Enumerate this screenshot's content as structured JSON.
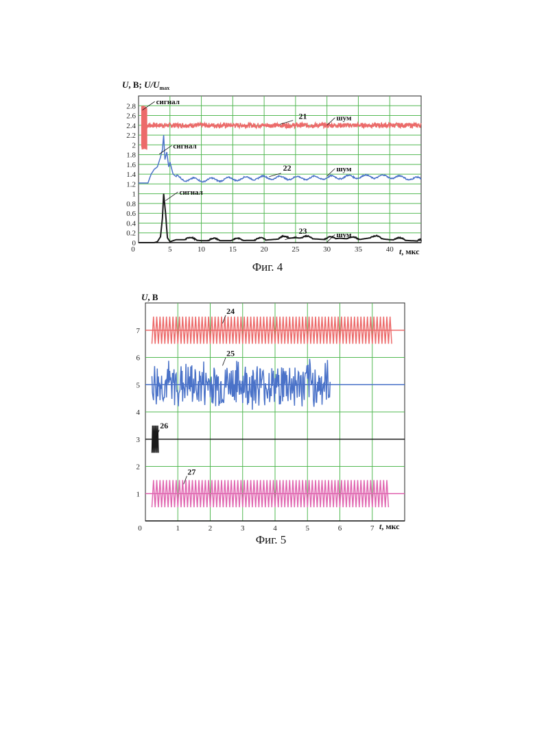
{
  "chart_data": [
    {
      "type": "line",
      "title": "",
      "ylabel_parts": {
        "u": "U",
        "sep": ", В; ",
        "u2": "U/U",
        "sub": "max"
      },
      "xlabel_parts": {
        "t": "t",
        "rest": ", мкс"
      },
      "xlim": [
        0,
        45
      ],
      "ylim": [
        0,
        3.0
      ],
      "grid": true,
      "x_ticks": [
        "0",
        "5",
        "10",
        "15",
        "20",
        "25",
        "30",
        "35",
        "40"
      ],
      "x_tick_values": [
        0,
        5,
        10,
        15,
        20,
        25,
        30,
        35,
        40
      ],
      "y_ticks": [
        "0",
        "0.2",
        "0.4",
        "0.6",
        "0.8",
        "1",
        "1.2",
        "1.4",
        "1.6",
        "1.8",
        "2",
        "2.2",
        "2.4",
        "2.6",
        "2.8"
      ],
      "y_tick_values": [
        0,
        0.2,
        0.4,
        0.6,
        0.8,
        1.0,
        1.2,
        1.4,
        1.6,
        1.8,
        2.0,
        2.2,
        2.4,
        2.6,
        2.8
      ],
      "series": [
        {
          "label": "21",
          "color": "#ec6a6a",
          "baseline": 2.4,
          "noise_amplitude": 0.05,
          "signal": {
            "x_range": [
              0.5,
              1.3
            ],
            "y_range": [
              1.9,
              2.8
            ]
          },
          "x": [
            0.5,
            1.3,
            2,
            5,
            10,
            15,
            20,
            25,
            30,
            35,
            40,
            45
          ],
          "y": [
            2.4,
            2.4,
            2.4,
            2.4,
            2.4,
            2.4,
            2.4,
            2.4,
            2.4,
            2.4,
            2.4,
            2.4
          ]
        },
        {
          "label": "22",
          "color": "#4a72c8",
          "x": [
            0,
            1.5,
            2.0,
            2.5,
            3.0,
            3.5,
            3.8,
            4.0,
            4.2,
            4.5,
            4.8,
            5.0,
            5.5,
            6.0,
            7,
            10,
            15,
            20,
            25,
            30,
            35,
            40,
            45
          ],
          "y": [
            1.22,
            1.22,
            1.4,
            1.5,
            1.55,
            1.75,
            1.9,
            2.2,
            1.7,
            1.85,
            1.55,
            1.65,
            1.4,
            1.35,
            1.3,
            1.28,
            1.3,
            1.33,
            1.32,
            1.33,
            1.35,
            1.35,
            1.3
          ]
        },
        {
          "label": "23",
          "color": "#1a1a1a",
          "x": [
            0,
            2.5,
            3.0,
            3.5,
            3.8,
            4.0,
            4.3,
            4.6,
            5.0,
            6,
            8,
            10,
            15,
            20,
            25,
            30,
            32,
            35,
            37,
            40,
            45
          ],
          "y": [
            0,
            0,
            0.02,
            0.12,
            0.5,
            1.0,
            0.6,
            0.1,
            0.02,
            0.06,
            0.06,
            0.04,
            0.04,
            0.05,
            0.1,
            0.06,
            0.09,
            0.06,
            0.1,
            0.06,
            0.03
          ]
        }
      ],
      "annotations": [
        {
          "text": "сигнал",
          "x": 2.8,
          "y": 2.83
        },
        {
          "text": "шум",
          "x": 31.5,
          "y": 2.5
        },
        {
          "text": "сигнал",
          "x": 5.5,
          "y": 1.93
        },
        {
          "text": "шум",
          "x": 31.5,
          "y": 1.46
        },
        {
          "text": "сигнал",
          "x": 6.5,
          "y": 0.98
        },
        {
          "text": "шум",
          "x": 31.5,
          "y": 0.11
        }
      ]
    },
    {
      "type": "line",
      "title": "",
      "ylabel_parts": {
        "u": "U",
        "rest": ", В"
      },
      "xlabel_parts": {
        "t": "t",
        "rest": ", мкс"
      },
      "xlim": [
        0,
        8
      ],
      "ylim": [
        0,
        8
      ],
      "grid": true,
      "x_ticks": [
        "0",
        "1",
        "2",
        "3",
        "4",
        "5",
        "6",
        "7"
      ],
      "x_tick_values": [
        0,
        1,
        2,
        3,
        4,
        5,
        6,
        7
      ],
      "y_ticks": [
        "1",
        "2",
        "3",
        "4",
        "5",
        "6",
        "7"
      ],
      "y_tick_values": [
        1,
        2,
        3,
        4,
        5,
        6,
        7
      ],
      "series": [
        {
          "label": "24",
          "color": "#ec6a6a",
          "baseline": 7,
          "amplitude": 0.5,
          "x_range": [
            0.2,
            7.6
          ],
          "kind": "oscillation"
        },
        {
          "label": "25",
          "color": "#4a72c8",
          "baseline": 5,
          "amplitude": 1.0,
          "x_range": [
            0.2,
            5.7
          ],
          "kind": "noise"
        },
        {
          "label": "26",
          "color": "#1a1a1a",
          "baseline": 3,
          "amplitude": 0.5,
          "x_range": [
            0.2,
            0.4
          ],
          "kind": "burst"
        },
        {
          "label": "27",
          "color": "#e066b0",
          "baseline": 1,
          "amplitude": 0.5,
          "x_range": [
            0.2,
            7.5
          ],
          "kind": "oscillation"
        }
      ]
    }
  ],
  "captions": {
    "fig4": "Фиг. 4",
    "fig5": "Фиг. 5"
  }
}
